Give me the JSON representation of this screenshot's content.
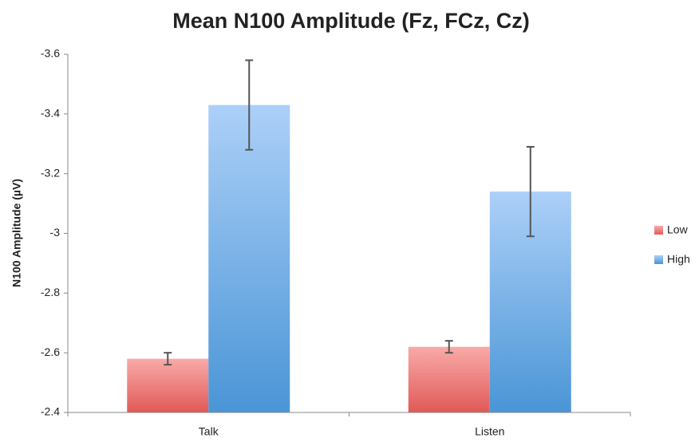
{
  "chart_data": {
    "type": "bar",
    "title": "Mean N100 Amplitude (Fz, FCz, Cz)",
    "y_label": "N100 Amplitude (µV)",
    "categories": [
      "Talk",
      "Listen"
    ],
    "series": [
      {
        "name": "Low",
        "color": "#e86464",
        "values": [
          -2.58,
          -2.62
        ],
        "errors": [
          0.02,
          0.02
        ]
      },
      {
        "name": "High",
        "color": "#5a9fdc",
        "values": [
          -3.43,
          -3.14
        ],
        "errors": [
          0.15,
          0.15
        ]
      }
    ],
    "ylim": [
      -2.4,
      -3.6
    ],
    "yticks": [
      -2.4,
      -2.6,
      -2.8,
      -3,
      -3.2,
      -3.4,
      -3.6
    ],
    "legend": "right"
  }
}
